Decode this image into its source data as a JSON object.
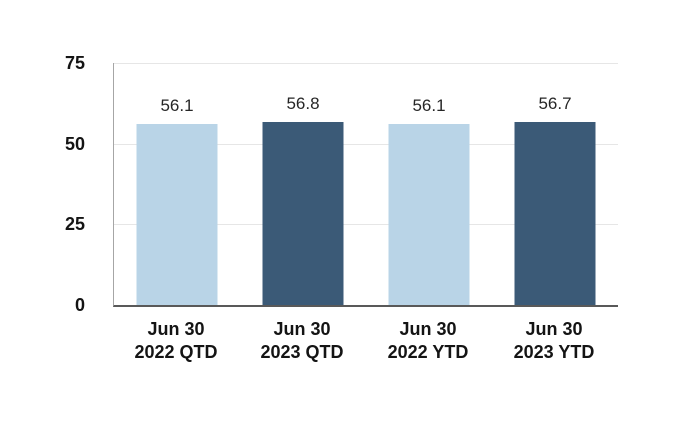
{
  "chart_data": {
    "type": "bar",
    "title": "",
    "xlabel": "",
    "ylabel": "",
    "categories": [
      "Jun 30 2022 QTD",
      "Jun 30 2023 QTD",
      "Jun 30 2022 YTD",
      "Jun 30 2023 YTD"
    ],
    "category_lines": [
      [
        "Jun 30",
        "2022 QTD"
      ],
      [
        "Jun 30",
        "2023 QTD"
      ],
      [
        "Jun 30",
        "2022 YTD"
      ],
      [
        "Jun 30",
        "2023 YTD"
      ]
    ],
    "values": [
      56.1,
      56.8,
      56.1,
      56.7
    ],
    "value_labels": [
      "56.1",
      "56.8",
      "56.1",
      "56.7"
    ],
    "bar_colors": [
      "#b9d4e7",
      "#3b5a77",
      "#b9d4e7",
      "#3b5a77"
    ],
    "ylim": [
      0,
      75
    ],
    "yticks": [
      0,
      25,
      50,
      75
    ],
    "grid": true,
    "legend": false
  },
  "colors": {
    "light_bar": "#b9d4e7",
    "dark_bar": "#3b5a77",
    "gridline": "#e6e6e6",
    "axis_bottom": "#595959",
    "axis_left": "#a6a6a6",
    "tick_text": "#141414",
    "value_text": "#262626"
  }
}
